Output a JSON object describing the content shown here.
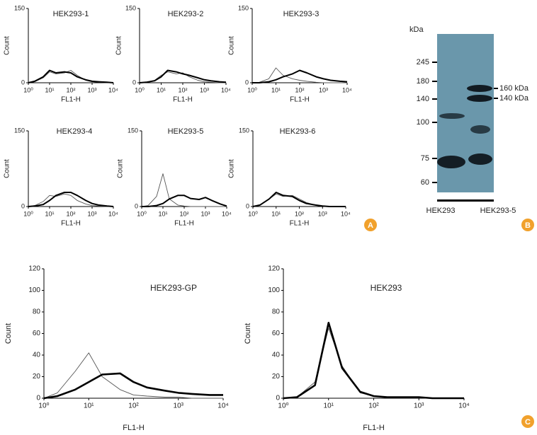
{
  "chart_data": [
    {
      "type": "line",
      "title": "HEK293-1",
      "ylabel": "Count",
      "xlabel": "FL1-H",
      "xlog": true,
      "xlim": [
        1,
        10000
      ],
      "xticks": [
        {
          "value": 1,
          "label": "10⁰"
        },
        {
          "value": 10,
          "label": "10¹"
        },
        {
          "value": 100,
          "label": "10²"
        },
        {
          "value": 1000,
          "label": "10³"
        },
        {
          "value": 10000,
          "label": "10⁴"
        }
      ],
      "ylim": [
        0,
        150
      ],
      "yticks": [
        0,
        150
      ],
      "x": [
        1,
        2,
        5,
        10,
        20,
        50,
        100,
        200,
        500,
        1000,
        2000,
        5000,
        10000
      ],
      "series": [
        {
          "color": "#555555",
          "values": [
            0,
            2,
            10,
            22,
            18,
            20,
            25,
            15,
            5,
            2,
            1,
            0,
            0
          ]
        },
        {
          "color": "#000000",
          "values": [
            0,
            3,
            12,
            25,
            20,
            22,
            20,
            12,
            6,
            3,
            2,
            1,
            0
          ]
        }
      ]
    },
    {
      "type": "line",
      "title": "HEK293-2",
      "ylabel": "Count",
      "xlabel": "FL1-H",
      "xlog": true,
      "xlim": [
        1,
        10000
      ],
      "xticks": [
        {
          "value": 1,
          "label": "10⁰"
        },
        {
          "value": 10,
          "label": "10¹"
        },
        {
          "value": 100,
          "label": "10²"
        },
        {
          "value": 1000,
          "label": "10³"
        },
        {
          "value": 10000,
          "label": "10⁴"
        }
      ],
      "ylim": [
        0,
        150
      ],
      "yticks": [
        0,
        150
      ],
      "x": [
        1,
        2,
        5,
        10,
        20,
        50,
        100,
        200,
        500,
        1000,
        2000,
        5000,
        10000
      ],
      "series": [
        {
          "color": "#555555",
          "values": [
            0,
            1,
            5,
            15,
            22,
            18,
            20,
            12,
            5,
            2,
            1,
            0,
            0
          ]
        },
        {
          "color": "#000000",
          "values": [
            0,
            1,
            4,
            12,
            25,
            22,
            18,
            15,
            10,
            6,
            4,
            2,
            1
          ]
        }
      ]
    },
    {
      "type": "line",
      "title": "HEK293-3",
      "ylabel": "Count",
      "xlabel": "FL1-H",
      "xlog": true,
      "xlim": [
        1,
        10000
      ],
      "xticks": [
        {
          "value": 1,
          "label": "10⁰"
        },
        {
          "value": 10,
          "label": "10¹"
        },
        {
          "value": 100,
          "label": "10²"
        },
        {
          "value": 1000,
          "label": "10³"
        },
        {
          "value": 10000,
          "label": "10⁴"
        }
      ],
      "ylim": [
        0,
        150
      ],
      "yticks": [
        0,
        150
      ],
      "x": [
        1,
        2,
        5,
        10,
        20,
        50,
        100,
        200,
        500,
        1000,
        2000,
        5000,
        10000
      ],
      "series": [
        {
          "color": "#555555",
          "values": [
            0,
            1,
            8,
            30,
            15,
            8,
            5,
            3,
            1,
            0,
            0,
            0,
            0
          ]
        },
        {
          "color": "#000000",
          "values": [
            0,
            0,
            2,
            6,
            12,
            18,
            25,
            20,
            12,
            8,
            5,
            3,
            2
          ]
        }
      ]
    },
    {
      "type": "line",
      "title": "HEK293-4",
      "ylabel": "Count",
      "xlabel": "FL1-H",
      "xlog": true,
      "xlim": [
        1,
        10000
      ],
      "xticks": [
        {
          "value": 1,
          "label": "10⁰"
        },
        {
          "value": 10,
          "label": "10¹"
        },
        {
          "value": 100,
          "label": "10²"
        },
        {
          "value": 1000,
          "label": "10³"
        },
        {
          "value": 10000,
          "label": "10⁴"
        }
      ],
      "ylim": [
        0,
        150
      ],
      "yticks": [
        0,
        150
      ],
      "x": [
        1,
        2,
        5,
        10,
        20,
        50,
        100,
        200,
        500,
        1000,
        2000,
        5000,
        10000
      ],
      "series": [
        {
          "color": "#555555",
          "values": [
            0,
            2,
            10,
            22,
            20,
            25,
            22,
            12,
            5,
            2,
            1,
            0,
            0
          ]
        },
        {
          "color": "#000000",
          "values": [
            0,
            1,
            4,
            12,
            22,
            28,
            28,
            22,
            12,
            6,
            3,
            1,
            0
          ]
        }
      ]
    },
    {
      "type": "line",
      "title": "HEK293-5",
      "ylabel": "Count",
      "xlabel": "FL1-H",
      "xlog": true,
      "xlim": [
        1,
        10000
      ],
      "xticks": [
        {
          "value": 1,
          "label": "10⁰"
        },
        {
          "value": 10,
          "label": "10¹"
        },
        {
          "value": 100,
          "label": "10²"
        },
        {
          "value": 1000,
          "label": "10³"
        },
        {
          "value": 10000,
          "label": "10⁴"
        }
      ],
      "ylim": [
        0,
        150
      ],
      "yticks": [
        0,
        150
      ],
      "x": [
        1,
        2,
        5,
        10,
        20,
        50,
        100,
        200,
        500,
        1000,
        2000,
        5000,
        10000
      ],
      "series": [
        {
          "color": "#555555",
          "values": [
            0,
            2,
            20,
            65,
            15,
            3,
            1,
            0,
            0,
            0,
            0,
            0,
            0
          ]
        },
        {
          "color": "#000000",
          "values": [
            0,
            0,
            2,
            6,
            15,
            22,
            22,
            16,
            14,
            18,
            12,
            5,
            1
          ]
        }
      ]
    },
    {
      "type": "line",
      "title": "HEK293-6",
      "ylabel": "Count",
      "xlabel": "FL1-H",
      "xlog": true,
      "xlim": [
        1,
        10000
      ],
      "xticks": [
        {
          "value": 1,
          "label": "10⁰"
        },
        {
          "value": 10,
          "label": "10¹"
        },
        {
          "value": 100,
          "label": "10²"
        },
        {
          "value": 1000,
          "label": "10³"
        },
        {
          "value": 10000,
          "label": "10⁴"
        }
      ],
      "ylim": [
        0,
        150
      ],
      "yticks": [
        0,
        150
      ],
      "x": [
        1,
        2,
        5,
        10,
        20,
        50,
        100,
        200,
        500,
        1000,
        2000,
        5000,
        10000
      ],
      "series": [
        {
          "color": "#555555",
          "values": [
            0,
            3,
            15,
            25,
            20,
            22,
            15,
            8,
            3,
            1,
            0,
            0,
            0
          ]
        },
        {
          "color": "#000000",
          "values": [
            0,
            3,
            15,
            28,
            22,
            20,
            12,
            6,
            3,
            1,
            0,
            0,
            0
          ]
        }
      ]
    },
    {
      "type": "line",
      "title": "HEK293-GP",
      "ylabel": "Count",
      "xlabel": "FL1-H",
      "xlog": true,
      "xlim": [
        1,
        10000
      ],
      "xticks": [
        {
          "value": 1,
          "label": "10⁰"
        },
        {
          "value": 10,
          "label": "10¹"
        },
        {
          "value": 100,
          "label": "10²"
        },
        {
          "value": 1000,
          "label": "10³"
        },
        {
          "value": 10000,
          "label": "10⁴"
        }
      ],
      "ylim": [
        0,
        120
      ],
      "yticks": [
        0,
        20,
        40,
        60,
        80,
        100,
        120
      ],
      "x": [
        1,
        2,
        5,
        10,
        20,
        50,
        100,
        200,
        500,
        1000,
        2000,
        5000,
        10000
      ],
      "series": [
        {
          "color": "#555555",
          "values": [
            0,
            5,
            25,
            42,
            20,
            8,
            3,
            2,
            1,
            1,
            0,
            0,
            0
          ]
        },
        {
          "color": "#000000",
          "values": [
            0,
            2,
            8,
            15,
            22,
            23,
            15,
            10,
            7,
            5,
            4,
            3,
            3
          ]
        }
      ]
    },
    {
      "type": "line",
      "title": "HEK293",
      "ylabel": "Count",
      "xlabel": "FL1-H",
      "xlog": true,
      "xlim": [
        1,
        10000
      ],
      "xticks": [
        {
          "value": 1,
          "label": "10⁰"
        },
        {
          "value": 10,
          "label": "10¹"
        },
        {
          "value": 100,
          "label": "10²"
        },
        {
          "value": 1000,
          "label": "10³"
        },
        {
          "value": 10000,
          "label": "10⁴"
        }
      ],
      "ylim": [
        0,
        120
      ],
      "yticks": [
        0,
        20,
        40,
        60,
        80,
        100,
        120
      ],
      "x": [
        1,
        2,
        5,
        10,
        20,
        50,
        100,
        200,
        500,
        1000,
        2000,
        5000,
        10000
      ],
      "series": [
        {
          "color": "#555555",
          "values": [
            0,
            1,
            15,
            65,
            30,
            5,
            2,
            1,
            1,
            1,
            0,
            0,
            0
          ]
        },
        {
          "color": "#000000",
          "values": [
            0,
            1,
            12,
            70,
            28,
            6,
            2,
            1,
            1,
            1,
            0,
            0,
            0
          ]
        }
      ]
    }
  ],
  "blot": {
    "unit": "kDa",
    "markers": [
      "245",
      "180",
      "140",
      "100",
      "75",
      "60"
    ],
    "band_labels": [
      "160 kDa",
      "140 kDa"
    ],
    "lanes": [
      "HEK293",
      "HEK293-5"
    ]
  },
  "panel_labels": [
    "A",
    "B",
    "C"
  ]
}
